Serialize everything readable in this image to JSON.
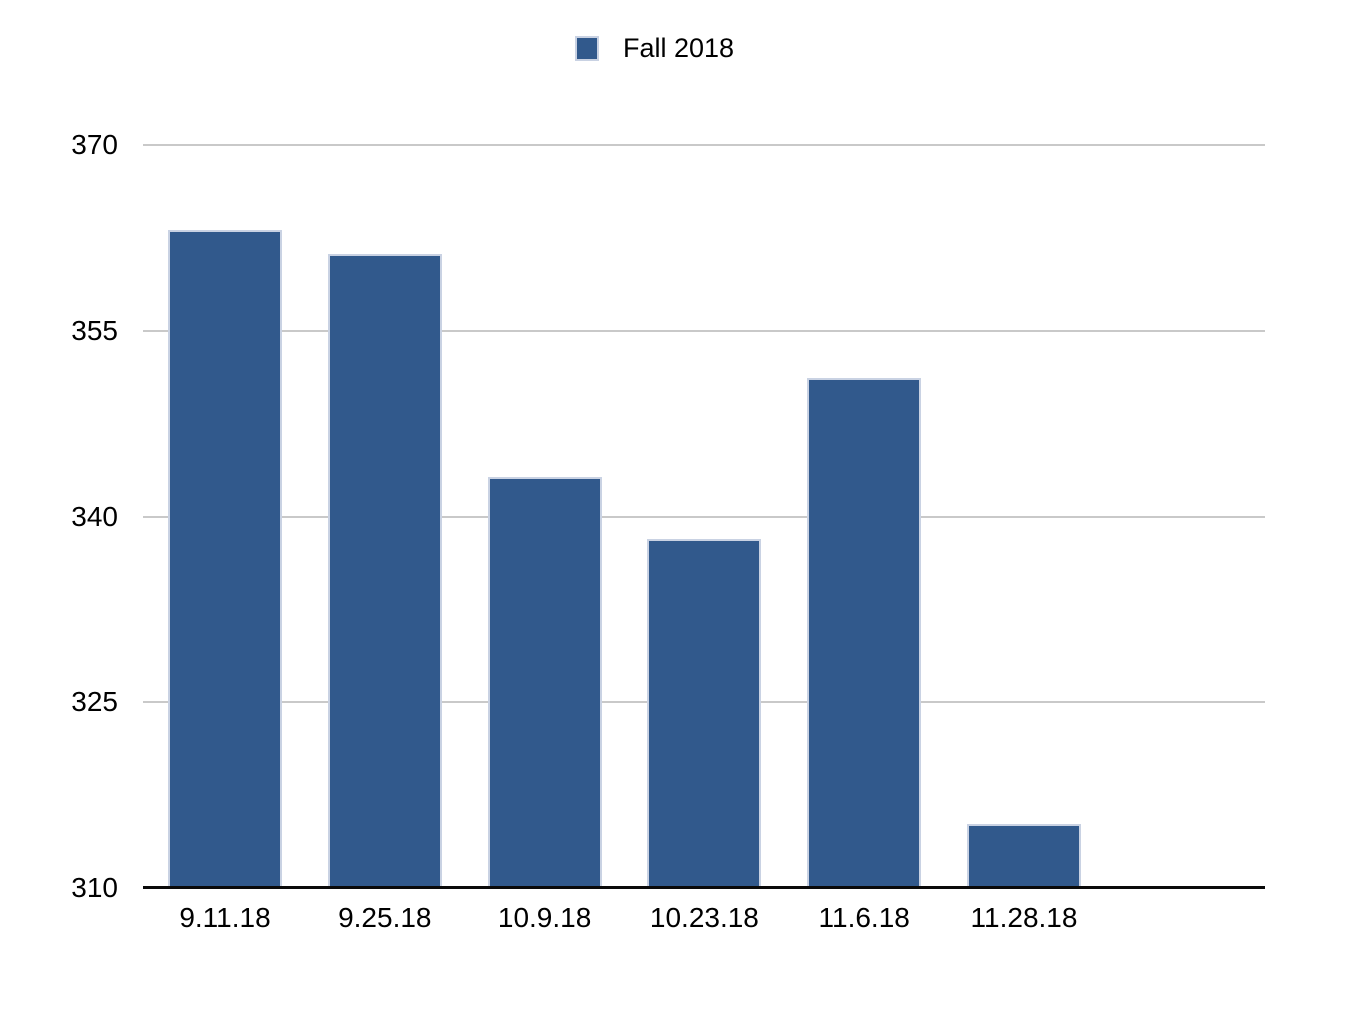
{
  "legend": {
    "label": "Fall 2018",
    "swatch_color": "#31598C"
  },
  "chart_data": {
    "type": "bar",
    "title": "",
    "categories": [
      "9.11.18",
      "9.25.18",
      "10.9.18",
      "10.23.18",
      "11.6.18",
      "11.28.18"
    ],
    "series": [
      {
        "name": "Fall 2018",
        "values": [
          363,
          361,
          343,
          338,
          351,
          315
        ]
      }
    ],
    "xlabel": "",
    "ylabel": "",
    "ylim": [
      310,
      370
    ],
    "yticks": [
      310,
      325,
      340,
      355,
      370
    ],
    "grid": true,
    "legend_position": "top-center",
    "colors": {
      "bar_fill": "#31598C",
      "bar_border": "#C9D2E3",
      "gridline": "#C9C9C9",
      "axis_line": "#0A0A0A",
      "text": "#000000"
    }
  }
}
